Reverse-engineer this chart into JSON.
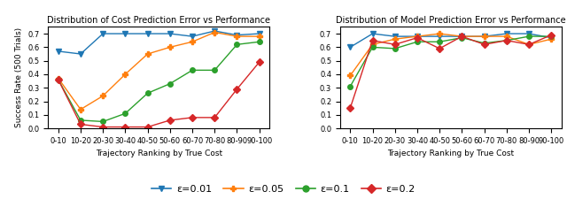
{
  "categories": [
    "0-10",
    "10-20",
    "20-30",
    "30-40",
    "40-50",
    "50-60",
    "60-70",
    "70-80",
    "80-90",
    "90-100"
  ],
  "left_title": "Distribution of Cost Prediction Error vs Performance",
  "right_title": "Distribution of Model Prediction Error vs Performance",
  "xlabel": "Trajectory Ranking by True Cost",
  "ylabel": "Success Rate (500 Trials)",
  "left": {
    "eps_001": [
      0.57,
      0.55,
      0.7,
      0.7,
      0.7,
      0.7,
      0.68,
      0.72,
      0.69,
      0.7
    ],
    "eps_005": [
      0.37,
      0.14,
      0.24,
      0.4,
      0.55,
      0.6,
      0.64,
      0.71,
      0.68,
      0.68
    ],
    "eps_01": [
      0.36,
      0.06,
      0.05,
      0.11,
      0.26,
      0.33,
      0.43,
      0.43,
      0.62,
      0.64
    ],
    "eps_02": [
      0.36,
      0.03,
      0.01,
      0.01,
      0.01,
      0.06,
      0.08,
      0.08,
      0.29,
      0.49
    ]
  },
  "right": {
    "eps_001": [
      0.6,
      0.7,
      0.68,
      0.68,
      0.68,
      0.68,
      0.68,
      0.7,
      0.7,
      0.67
    ],
    "eps_005": [
      0.39,
      0.62,
      0.66,
      0.68,
      0.7,
      0.68,
      0.68,
      0.68,
      0.62,
      0.66
    ],
    "eps_01": [
      0.31,
      0.6,
      0.59,
      0.64,
      0.64,
      0.67,
      0.63,
      0.65,
      0.68,
      0.68
    ],
    "eps_02": [
      0.15,
      0.65,
      0.62,
      0.67,
      0.59,
      0.68,
      0.62,
      0.65,
      0.62,
      0.69
    ]
  },
  "colors": {
    "eps_001": "#1f77b4",
    "eps_005": "#ff7f0e",
    "eps_01": "#2ca02c",
    "eps_02": "#d62728"
  },
  "markers": {
    "eps_001": "v",
    "eps_005": "P",
    "eps_01": "o",
    "eps_02": "D"
  },
  "legend_labels": {
    "eps_001": "ε=0.01",
    "eps_005": "ε=0.05",
    "eps_01": "ε=0.1",
    "eps_02": "ε=0.2"
  },
  "ylim": [
    0.0,
    0.75
  ],
  "yticks": [
    0.0,
    0.1,
    0.2,
    0.3,
    0.4,
    0.5,
    0.6,
    0.7
  ],
  "fig_width": 6.4,
  "fig_height": 2.34,
  "dpi": 100
}
